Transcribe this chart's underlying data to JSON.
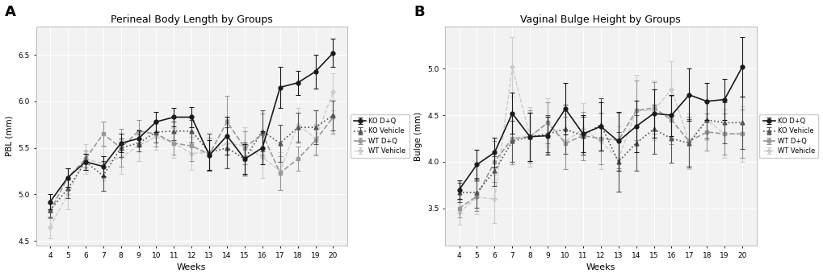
{
  "weeks": [
    4,
    5,
    6,
    7,
    8,
    9,
    10,
    11,
    12,
    13,
    14,
    15,
    16,
    17,
    18,
    19,
    20
  ],
  "panel_A": {
    "title": "Perineal Body Length by Groups",
    "ylabel": "PBL (mm)",
    "xlabel": "Weeks",
    "ylim": [
      4.45,
      6.8
    ],
    "yticks": [
      4.5,
      5.0,
      5.5,
      6.0,
      6.5
    ],
    "KO_DQ_mean": [
      4.92,
      5.18,
      5.35,
      5.3,
      5.55,
      5.6,
      5.78,
      5.83,
      5.83,
      5.42,
      5.63,
      5.38,
      5.5,
      6.15,
      6.2,
      6.32,
      6.52
    ],
    "KO_DQ_err": [
      0.08,
      0.1,
      0.09,
      0.11,
      0.1,
      0.09,
      0.11,
      0.1,
      0.11,
      0.16,
      0.2,
      0.16,
      0.18,
      0.22,
      0.13,
      0.18,
      0.15
    ],
    "KO_Veh_mean": [
      4.83,
      5.06,
      5.35,
      5.2,
      5.5,
      5.55,
      5.67,
      5.68,
      5.68,
      5.45,
      5.5,
      5.38,
      5.68,
      5.55,
      5.72,
      5.72,
      5.85
    ],
    "KO_Veh_err": [
      0.08,
      0.1,
      0.09,
      0.16,
      0.1,
      0.09,
      0.11,
      0.1,
      0.12,
      0.2,
      0.22,
      0.18,
      0.22,
      0.2,
      0.16,
      0.18,
      0.16
    ],
    "WT_DQ_mean": [
      4.82,
      5.18,
      5.38,
      5.65,
      5.5,
      5.68,
      5.65,
      5.55,
      5.52,
      5.43,
      5.78,
      5.5,
      5.65,
      5.23,
      5.38,
      5.58,
      5.83
    ],
    "WT_DQ_err": [
      0.08,
      0.1,
      0.09,
      0.13,
      0.2,
      0.12,
      0.14,
      0.12,
      0.16,
      0.18,
      0.28,
      0.18,
      0.22,
      0.18,
      0.13,
      0.16,
      0.18
    ],
    "WT_Veh_mean": [
      4.65,
      5.0,
      5.38,
      5.33,
      5.4,
      5.52,
      5.62,
      5.55,
      5.44,
      5.45,
      5.55,
      5.52,
      5.4,
      5.25,
      5.75,
      5.6,
      6.1
    ],
    "WT_Veh_err": [
      0.12,
      0.16,
      0.16,
      0.18,
      0.18,
      0.16,
      0.14,
      0.16,
      0.18,
      0.2,
      0.26,
      0.2,
      0.22,
      0.2,
      0.18,
      0.16,
      0.2
    ]
  },
  "panel_B": {
    "title": "Vaginal Bulge Height by Groups",
    "ylabel": "Bulge (mm)",
    "xlabel": "Weeks",
    "ylim": [
      3.1,
      5.45
    ],
    "yticks": [
      3.5,
      4.0,
      4.5,
      5.0
    ],
    "KO_DQ_mean": [
      3.7,
      3.97,
      4.1,
      4.52,
      4.27,
      4.28,
      4.57,
      4.3,
      4.38,
      4.22,
      4.38,
      4.52,
      4.5,
      4.72,
      4.65,
      4.67,
      5.02
    ],
    "KO_DQ_err": [
      0.1,
      0.16,
      0.16,
      0.22,
      0.26,
      0.2,
      0.28,
      0.2,
      0.26,
      0.32,
      0.28,
      0.26,
      0.22,
      0.28,
      0.2,
      0.22,
      0.32
    ],
    "KO_Veh_mean": [
      3.67,
      3.67,
      3.9,
      4.22,
      4.27,
      4.3,
      4.35,
      4.28,
      4.4,
      4.0,
      4.2,
      4.35,
      4.25,
      4.2,
      4.45,
      4.42,
      4.42
    ],
    "KO_Veh_err": [
      0.1,
      0.16,
      0.16,
      0.22,
      0.26,
      0.2,
      0.26,
      0.2,
      0.28,
      0.32,
      0.3,
      0.26,
      0.26,
      0.26,
      0.2,
      0.22,
      0.28
    ],
    "WT_DQ_mean": [
      3.5,
      3.63,
      4.0,
      4.25,
      4.27,
      4.42,
      4.2,
      4.28,
      4.25,
      4.23,
      4.55,
      4.58,
      4.45,
      4.22,
      4.32,
      4.3,
      4.3
    ],
    "WT_DQ_err": [
      0.1,
      0.16,
      0.22,
      0.28,
      0.28,
      0.22,
      0.28,
      0.26,
      0.28,
      0.3,
      0.32,
      0.28,
      0.26,
      0.26,
      0.2,
      0.22,
      0.26
    ],
    "WT_Veh_mean": [
      3.45,
      3.62,
      3.6,
      5.02,
      4.27,
      4.42,
      4.22,
      4.35,
      4.22,
      4.03,
      4.55,
      4.55,
      4.78,
      4.22,
      4.45,
      4.3,
      4.3
    ],
    "WT_Veh_err": [
      0.13,
      0.18,
      0.26,
      0.32,
      0.32,
      0.26,
      0.3,
      0.28,
      0.3,
      0.35,
      0.38,
      0.32,
      0.3,
      0.3,
      0.22,
      0.26,
      0.3
    ]
  },
  "colors": {
    "KO_DQ": "#1a1a1a",
    "KO_Veh": "#555555",
    "WT_DQ": "#999999",
    "WT_Veh": "#cccccc"
  },
  "background_color": "#f2f2f2",
  "grid_color": "#ffffff",
  "fig_background": "#ffffff"
}
